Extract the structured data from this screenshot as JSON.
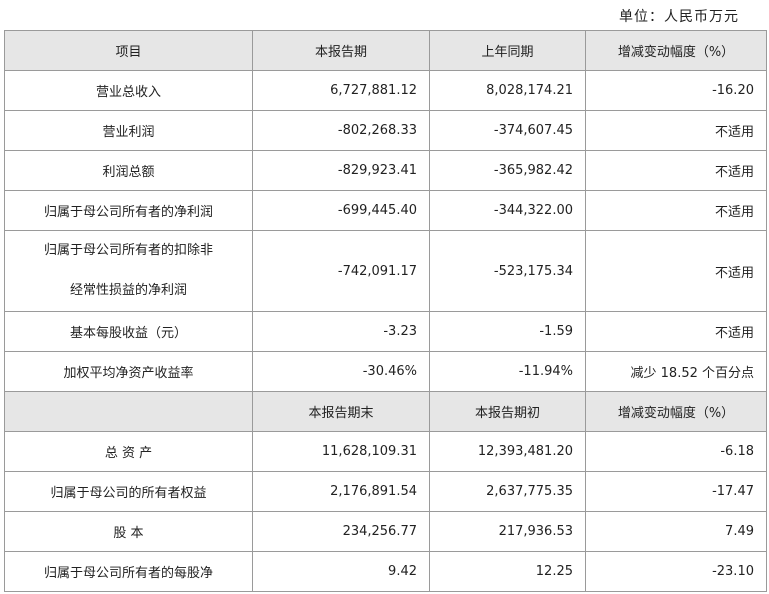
{
  "unit": "单位：人民币万元",
  "header1": [
    "项目",
    "本报告期",
    "上年同期",
    "增减变动幅度（%）"
  ],
  "rows1": [
    {
      "item": "营业总收入",
      "current": "6,727,881.12",
      "prior": "8,028,174.21",
      "change": "-16.20"
    },
    {
      "item": "营业利润",
      "current": "-802,268.33",
      "prior": "-374,607.45",
      "change": "不适用"
    },
    {
      "item": "利润总额",
      "current": "-829,923.41",
      "prior": "-365,982.42",
      "change": "不适用"
    },
    {
      "item": "归属于母公司所有者的净利润",
      "current": "-699,445.40",
      "prior": "-344,322.00",
      "change": "不适用"
    },
    {
      "item": "归属于母公司所有者的扣除非",
      "item2": "经常性损益的净利润",
      "current": "-742,091.17",
      "prior": "-523,175.34",
      "change": "不适用"
    },
    {
      "item": "基本每股收益（元）",
      "current": "-3.23",
      "prior": "-1.59",
      "change": "不适用"
    },
    {
      "item": "加权平均净资产收益率",
      "current": "-30.46%",
      "prior": "-11.94%",
      "change": "减少 18.52 个百分点"
    }
  ],
  "header2": [
    "",
    "本报告期末",
    "本报告期初",
    "增减变动幅度（%）"
  ],
  "rows2": [
    {
      "item": "总 资 产",
      "current": "11,628,109.31",
      "prior": "12,393,481.20",
      "change": "-6.18"
    },
    {
      "item": "归属于母公司的所有者权益",
      "current": "2,176,891.54",
      "prior": "2,637,775.35",
      "change": "-17.47"
    },
    {
      "item": "股 本",
      "current": "234,256.77",
      "prior": "217,936.53",
      "change": "7.49"
    },
    {
      "item": "归属于母公司所有者的每股净",
      "current": "9.42",
      "prior": "12.25",
      "change": "-23.10"
    }
  ]
}
